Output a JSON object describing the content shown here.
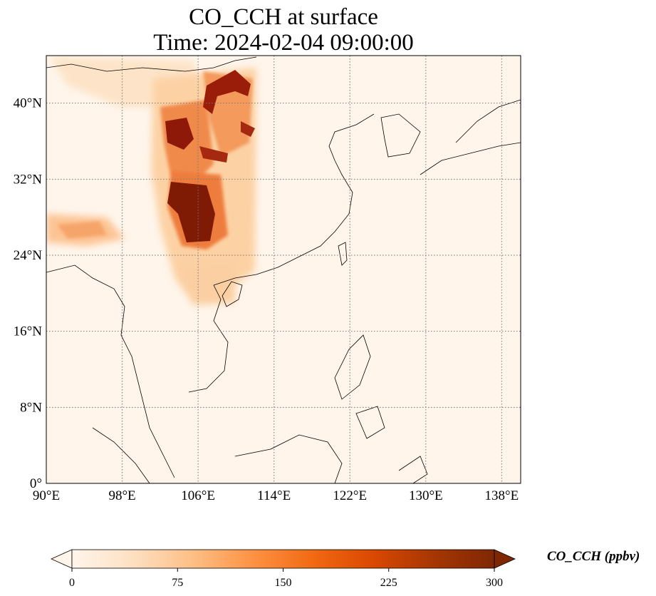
{
  "title": {
    "line1": "CO_CCH at surface",
    "line2": "Time: 2024-02-04 09:00:00"
  },
  "map": {
    "projection": "PlateCarree",
    "lon_range": [
      90,
      140
    ],
    "lat_range": [
      0,
      45
    ],
    "gridlines": "dotted",
    "lon_ticks": [
      {
        "value": 90,
        "label": "90°E"
      },
      {
        "value": 98,
        "label": "98°E"
      },
      {
        "value": 106,
        "label": "106°E"
      },
      {
        "value": 114,
        "label": "114°E"
      },
      {
        "value": 122,
        "label": "122°E"
      },
      {
        "value": 130,
        "label": "130°E"
      },
      {
        "value": 138,
        "label": "138°E"
      }
    ],
    "lat_ticks": [
      {
        "value": 0,
        "label": "0°"
      },
      {
        "value": 8,
        "label": "8°N"
      },
      {
        "value": 16,
        "label": "16°N"
      },
      {
        "value": 24,
        "label": "24°N"
      },
      {
        "value": 32,
        "label": "32°N"
      },
      {
        "value": 40,
        "label": "40°N"
      }
    ],
    "background_color": "#fff5eb",
    "plume_color_scale": [
      "#fff5eb",
      "#fdd9b4",
      "#fdaa6b",
      "#f26b2b",
      "#d44304",
      "#a73103",
      "#7f2704"
    ]
  },
  "colorbar": {
    "label": "CO_CCH (ppbv)",
    "colormap": "OrRd-like",
    "min": 0,
    "max": 300,
    "extend": "both",
    "ticks": [
      {
        "value": 0,
        "label": "0"
      },
      {
        "value": 75,
        "label": "75"
      },
      {
        "value": 150,
        "label": "150"
      },
      {
        "value": 225,
        "label": "225"
      },
      {
        "value": 300,
        "label": "300"
      }
    ],
    "colors": [
      "#fff5eb",
      "#fde0c2",
      "#fdbf86",
      "#fd9243",
      "#f16913",
      "#d94801",
      "#a63603",
      "#7f2704"
    ]
  }
}
